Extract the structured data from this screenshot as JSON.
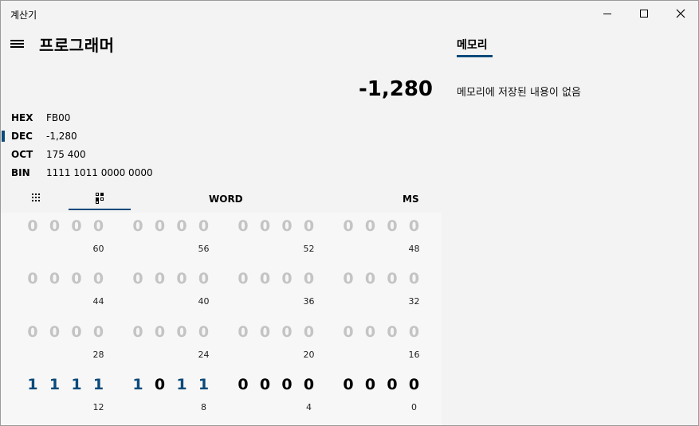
{
  "window": {
    "title": "계산기"
  },
  "header": {
    "mode_title": "프로그래머"
  },
  "display": {
    "value": "-1,280"
  },
  "radix": [
    {
      "label": "HEX",
      "value": "FB00",
      "selected": false
    },
    {
      "label": "DEC",
      "value": "-1,280",
      "selected": true
    },
    {
      "label": "OCT",
      "value": "175 400",
      "selected": false
    },
    {
      "label": "BIN",
      "value": "1111 1011 0000 0000",
      "selected": false
    }
  ],
  "toolbar": {
    "word_label": "WORD",
    "ms_label": "MS",
    "icons": [
      "keypad-icon",
      "bit-toggle-icon"
    ]
  },
  "bit_panel": {
    "rows": [
      {
        "bits": [
          "0",
          "0",
          "0",
          "0",
          "0",
          "0",
          "0",
          "0",
          "0",
          "0",
          "0",
          "0",
          "0",
          "0",
          "0",
          "0"
        ],
        "indices": [
          "60",
          "56",
          "52",
          "48"
        ]
      },
      {
        "bits": [
          "0",
          "0",
          "0",
          "0",
          "0",
          "0",
          "0",
          "0",
          "0",
          "0",
          "0",
          "0",
          "0",
          "0",
          "0",
          "0"
        ],
        "indices": [
          "44",
          "40",
          "36",
          "32"
        ]
      },
      {
        "bits": [
          "0",
          "0",
          "0",
          "0",
          "0",
          "0",
          "0",
          "0",
          "0",
          "0",
          "0",
          "0",
          "0",
          "0",
          "0",
          "0"
        ],
        "indices": [
          "28",
          "24",
          "20",
          "16"
        ]
      },
      {
        "bits": [
          "1",
          "1",
          "1",
          "1",
          "1",
          "0",
          "1",
          "1",
          "0",
          "0",
          "0",
          "0",
          "0",
          "0",
          "0",
          "0"
        ],
        "indices": [
          "12",
          "8",
          "4",
          "0"
        ],
        "active": true
      }
    ]
  },
  "memory": {
    "tab_label": "메모리",
    "empty_message": "메모리에 저장된 내용이 없음"
  },
  "colors": {
    "accent": "#0b4a7b",
    "inactive_bit": "#c4c4c4"
  }
}
